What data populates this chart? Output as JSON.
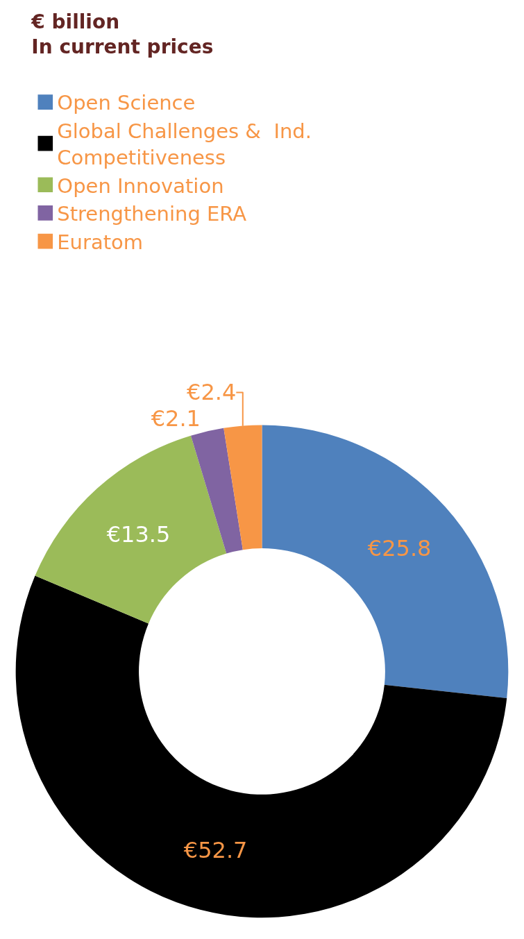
{
  "chart_data": {
    "type": "donut",
    "title": "€ billion",
    "subtitle": "In current prices",
    "categories": [
      "Open Science",
      "Global Challenges &  Ind. Competitiveness",
      "Open Innovation",
      "Strengthening ERA",
      "Euratom"
    ],
    "values": [
      25.8,
      52.7,
      13.5,
      2.1,
      2.4
    ],
    "colors": [
      "#4f81bd",
      "#000000",
      "#9bbb59",
      "#8064a2",
      "#f79646"
    ],
    "value_labels": [
      "€25.8",
      "€52.7",
      "€13.5",
      "€2.1",
      "€2.4"
    ],
    "legend": "top left"
  }
}
